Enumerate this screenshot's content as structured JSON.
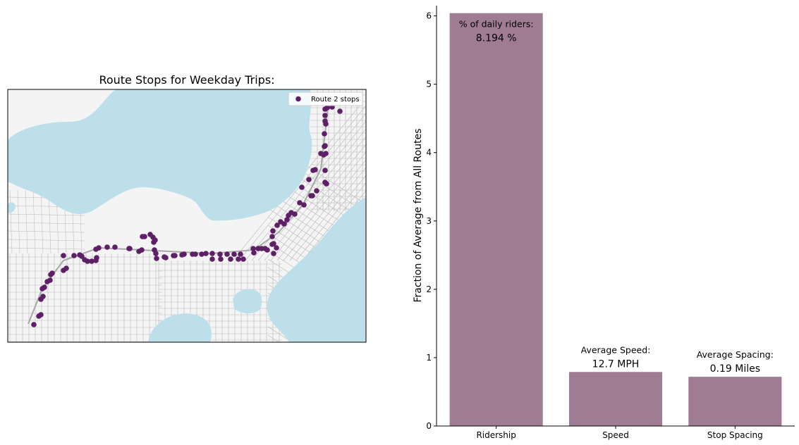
{
  "map": {
    "title": "Route Stops for Weekday Trips:",
    "legend_label": "Route 2 stops",
    "stop_color": "#5e1f66",
    "water_color": "#bcdfe9",
    "land_color": "#f4f4f4",
    "street_color": "#b9b9b9"
  },
  "chart_data": {
    "type": "bar",
    "categories": [
      "Ridership",
      "Speed",
      "Stop Spacing"
    ],
    "values": [
      6.04,
      0.79,
      0.72
    ],
    "ylabel": "Fraction of Average from All Routes",
    "ylim": [
      0,
      6.15
    ],
    "yticks": [
      0,
      1,
      2,
      3,
      4,
      5,
      6
    ],
    "bar_color": "#a07b94",
    "annotations": [
      {
        "label": "% of daily riders:",
        "value": "8.194 %"
      },
      {
        "label": "Average Speed:",
        "value": "12.7 MPH"
      },
      {
        "label": "Average Spacing:",
        "value": "0.19 Miles"
      }
    ]
  }
}
